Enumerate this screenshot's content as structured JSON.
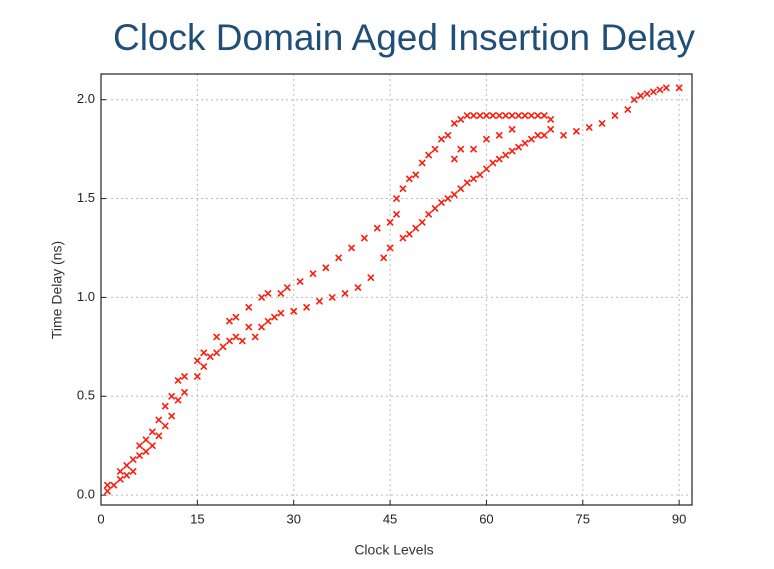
{
  "chart_data": {
    "type": "scatter",
    "title": "Clock Domain Aged Insertion Delay",
    "x_label": "Clock Levels",
    "y_label": "Time Delay (ns)",
    "xlim": [
      0,
      92
    ],
    "ylim": [
      -0.05,
      2.13
    ],
    "xticks": [
      0,
      15,
      30,
      45,
      60,
      75,
      90
    ],
    "yticks": [
      {
        "value": 0,
        "label": "0.0"
      },
      {
        "value": 0.5,
        "label": "0.5"
      },
      {
        "value": 1,
        "label": "1.0"
      },
      {
        "value": 1.5,
        "label": "1.5"
      },
      {
        "value": 2,
        "label": "2.0"
      }
    ],
    "grid": true,
    "color": "#ff1a0a",
    "x": [
      1,
      1,
      2,
      3,
      3,
      4,
      4,
      5,
      5,
      6,
      6,
      7,
      7,
      8,
      8,
      9,
      9,
      10,
      10,
      11,
      11,
      12,
      12,
      13,
      13,
      15,
      15,
      16,
      16,
      17,
      18,
      18,
      19,
      20,
      20,
      21,
      21,
      22,
      23,
      23,
      24,
      25,
      25,
      26,
      26,
      27,
      28,
      28,
      29,
      30,
      31,
      32,
      33,
      34,
      35,
      36,
      37,
      38,
      39,
      40,
      41,
      42,
      43,
      44,
      45,
      45,
      46,
      46,
      47,
      47,
      48,
      48,
      49,
      49,
      50,
      50,
      51,
      51,
      52,
      52,
      53,
      53,
      54,
      54,
      55,
      55,
      55,
      56,
      56,
      56,
      57,
      57,
      58,
      58,
      58,
      59,
      59,
      60,
      60,
      60,
      61,
      61,
      62,
      62,
      62,
      63,
      63,
      64,
      64,
      64,
      65,
      65,
      66,
      66,
      67,
      67,
      68,
      68,
      69,
      69,
      70,
      70,
      72,
      74,
      76,
      78,
      80,
      82,
      83,
      84,
      85,
      86,
      87,
      88,
      90
    ],
    "values": [
      0.02,
      0.05,
      0.05,
      0.08,
      0.12,
      0.1,
      0.15,
      0.12,
      0.18,
      0.2,
      0.25,
      0.22,
      0.28,
      0.25,
      0.32,
      0.3,
      0.38,
      0.35,
      0.45,
      0.4,
      0.5,
      0.48,
      0.58,
      0.52,
      0.6,
      0.6,
      0.68,
      0.65,
      0.72,
      0.7,
      0.72,
      0.8,
      0.75,
      0.78,
      0.88,
      0.8,
      0.9,
      0.78,
      0.85,
      0.95,
      0.8,
      0.85,
      1.0,
      0.88,
      1.02,
      0.9,
      0.92,
      1.02,
      1.05,
      0.93,
      1.08,
      0.95,
      1.12,
      0.98,
      1.15,
      1.0,
      1.2,
      1.02,
      1.25,
      1.05,
      1.3,
      1.1,
      1.35,
      1.2,
      1.38,
      1.25,
      1.42,
      1.5,
      1.3,
      1.55,
      1.32,
      1.6,
      1.35,
      1.62,
      1.38,
      1.68,
      1.42,
      1.72,
      1.45,
      1.75,
      1.48,
      1.8,
      1.5,
      1.82,
      1.52,
      1.7,
      1.88,
      1.55,
      1.75,
      1.9,
      1.58,
      1.92,
      1.6,
      1.75,
      1.92,
      1.62,
      1.92,
      1.65,
      1.8,
      1.92,
      1.68,
      1.92,
      1.7,
      1.82,
      1.92,
      1.72,
      1.92,
      1.74,
      1.85,
      1.92,
      1.76,
      1.92,
      1.78,
      1.92,
      1.8,
      1.92,
      1.82,
      1.92,
      1.82,
      1.92,
      1.85,
      1.9,
      1.82,
      1.84,
      1.86,
      1.88,
      1.92,
      1.95,
      2.0,
      2.02,
      2.03,
      2.04,
      2.05,
      2.06,
      2.06
    ]
  }
}
